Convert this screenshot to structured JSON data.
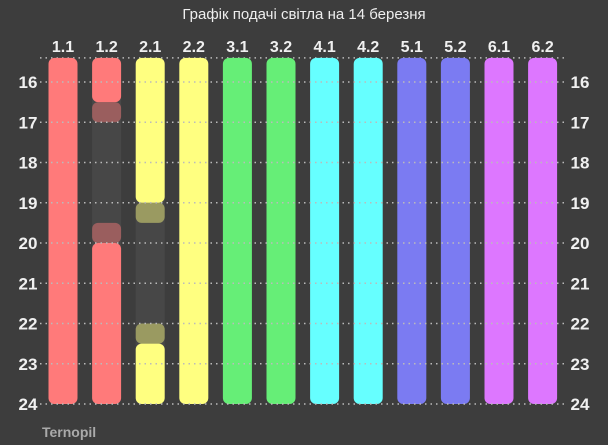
{
  "chart_data": {
    "type": "bar",
    "title": "Графік подачі світла на 14 березня",
    "footer": "Ternopil",
    "categories": [
      "1.1",
      "1.2",
      "2.1",
      "2.2",
      "3.1",
      "3.2",
      "4.1",
      "4.2",
      "5.1",
      "5.2",
      "6.1",
      "6.2"
    ],
    "colors": [
      "#ff7a7a",
      "#ff7a7a",
      "#ffff80",
      "#ffff80",
      "#66ee77",
      "#66ee77",
      "#66ffff",
      "#66ffff",
      "#7b7bf2",
      "#7b7bf2",
      "#dd77ff",
      "#dd77ff"
    ],
    "y_ticks": [
      16,
      17,
      18,
      19,
      20,
      21,
      22,
      23,
      24
    ],
    "ylim": [
      15.4,
      24
    ],
    "grid": true,
    "series": [
      {
        "group": "1.1",
        "segments": [
          {
            "from": 15.4,
            "to": 24,
            "state": "on"
          }
        ]
      },
      {
        "group": "1.2",
        "segments": [
          {
            "from": 15.4,
            "to": 16.5,
            "state": "on"
          },
          {
            "from": 16.5,
            "to": 17,
            "state": "maybe"
          },
          {
            "from": 17,
            "to": 19.5,
            "state": "off"
          },
          {
            "from": 19.5,
            "to": 20,
            "state": "maybe"
          },
          {
            "from": 20,
            "to": 24,
            "state": "on"
          }
        ]
      },
      {
        "group": "2.1",
        "segments": [
          {
            "from": 15.4,
            "to": 19,
            "state": "on"
          },
          {
            "from": 19,
            "to": 19.5,
            "state": "maybe"
          },
          {
            "from": 19.5,
            "to": 22,
            "state": "off"
          },
          {
            "from": 22,
            "to": 22.5,
            "state": "maybe"
          },
          {
            "from": 22.5,
            "to": 24,
            "state": "on"
          }
        ]
      },
      {
        "group": "2.2",
        "segments": [
          {
            "from": 15.4,
            "to": 24,
            "state": "on"
          }
        ]
      },
      {
        "group": "3.1",
        "segments": [
          {
            "from": 15.4,
            "to": 24,
            "state": "on"
          }
        ]
      },
      {
        "group": "3.2",
        "segments": [
          {
            "from": 15.4,
            "to": 24,
            "state": "on"
          }
        ]
      },
      {
        "group": "4.1",
        "segments": [
          {
            "from": 15.4,
            "to": 24,
            "state": "on"
          }
        ]
      },
      {
        "group": "4.2",
        "segments": [
          {
            "from": 15.4,
            "to": 24,
            "state": "on"
          }
        ]
      },
      {
        "group": "5.1",
        "segments": [
          {
            "from": 15.4,
            "to": 24,
            "state": "on"
          }
        ]
      },
      {
        "group": "5.2",
        "segments": [
          {
            "from": 15.4,
            "to": 24,
            "state": "on"
          }
        ]
      },
      {
        "group": "6.1",
        "segments": [
          {
            "from": 15.4,
            "to": 24,
            "state": "on"
          }
        ]
      },
      {
        "group": "6.2",
        "segments": [
          {
            "from": 15.4,
            "to": 24,
            "state": "on"
          }
        ]
      }
    ]
  }
}
